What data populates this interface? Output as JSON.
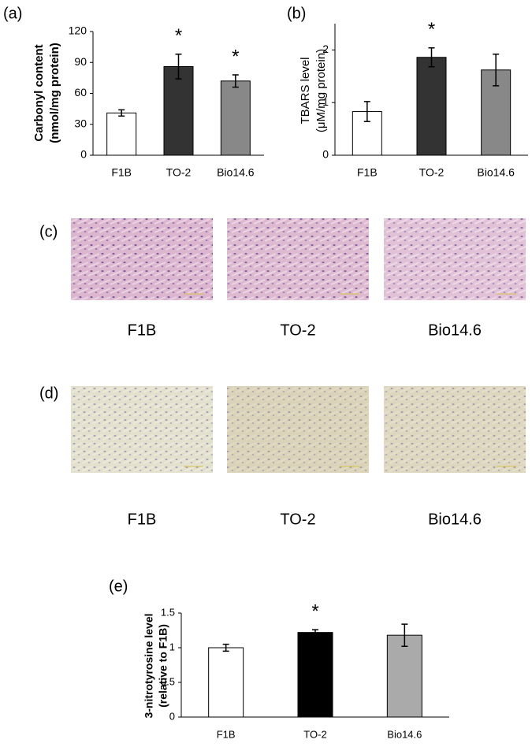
{
  "chart_data": [
    {
      "type": "bar",
      "panel_label": "(a)",
      "y_label": [
        "Carbonyl content",
        "(nmol/mg protein)"
      ],
      "categories": [
        "F1B",
        "TO-2",
        "Bio14.6"
      ],
      "values": [
        41,
        86,
        72
      ],
      "errors": [
        3,
        12,
        6
      ],
      "colors": [
        "#ffffff",
        "#333333",
        "#888888"
      ],
      "annotations": [
        null,
        "*",
        "*"
      ],
      "ylim": [
        0,
        120
      ],
      "yticks": [
        0,
        30,
        60,
        90,
        120
      ]
    },
    {
      "type": "bar",
      "panel_label": "(b)",
      "y_label": [
        "TBARS level",
        "(μM/mg protein)"
      ],
      "categories": [
        "F1B",
        "TO-2",
        "Bio14.6"
      ],
      "values": [
        0.83,
        1.86,
        1.62
      ],
      "errors": [
        0.19,
        0.18,
        0.3
      ],
      "colors": [
        "#ffffff",
        "#333333",
        "#888888"
      ],
      "annotations": [
        null,
        "*",
        null
      ],
      "ylim": [
        0,
        2.5
      ],
      "yticks": [
        0,
        1,
        2
      ]
    },
    {
      "type": "bar",
      "panel_label": "(e)",
      "y_label": [
        "3-nitrotyrosine level",
        "(relative to F1B)"
      ],
      "categories": [
        "F1B",
        "TO-2",
        "Bio14.6"
      ],
      "values": [
        1.0,
        1.22,
        1.18
      ],
      "errors": [
        0.05,
        0.04,
        0.16
      ],
      "colors": [
        "#ffffff",
        "#000000",
        "#aaaaaa"
      ],
      "annotations": [
        null,
        "*",
        null
      ],
      "ylim": [
        0,
        1.5
      ],
      "yticks": [
        0,
        0.5,
        1,
        1.5
      ]
    }
  ],
  "image_panels": [
    {
      "label": "(c)",
      "captions": [
        "F1B",
        "TO-2",
        "Bio14.6"
      ]
    },
    {
      "label": "(d)",
      "captions": [
        "F1B",
        "TO-2",
        "Bio14.6"
      ]
    }
  ]
}
